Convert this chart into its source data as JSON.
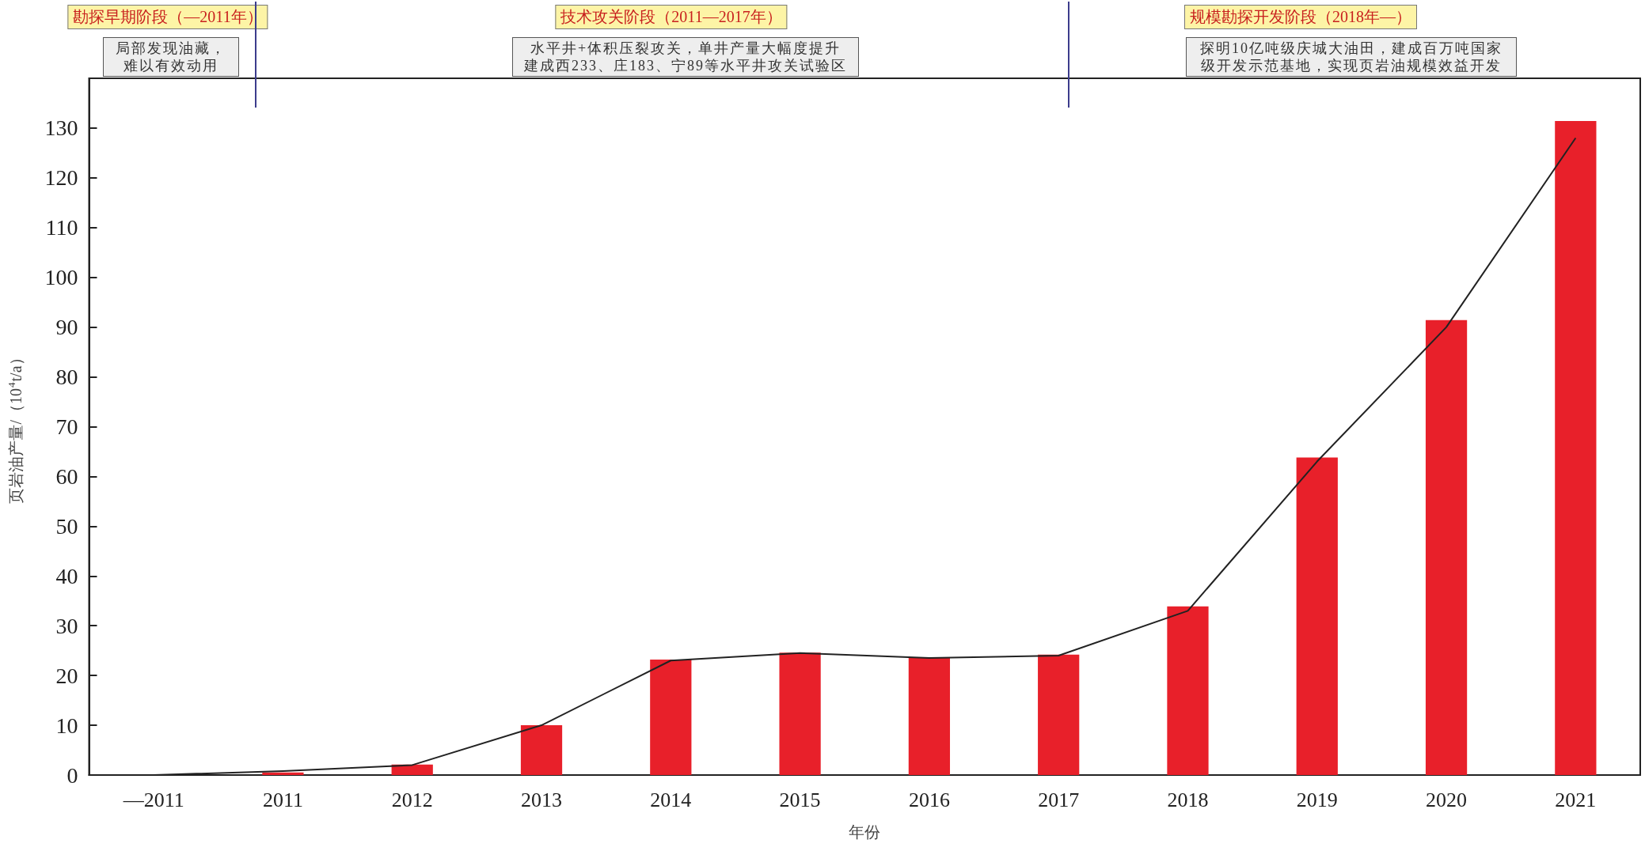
{
  "chart_data": {
    "type": "bar",
    "xlabel": "年份",
    "ylabel": "页岩油产量/（10$^{4}$t/a）",
    "categories": [
      "—2011",
      "2011",
      "2012",
      "2013",
      "2014",
      "2015",
      "2016",
      "2017",
      "2018",
      "2019",
      "2020",
      "2021"
    ],
    "series": [
      {
        "color": "#e8202a",
        "values": [
          0,
          0.5,
          2.1,
          10,
          23.2,
          24.6,
          23.6,
          24.2,
          33.9,
          63.8,
          91.4,
          131.4
        ]
      },
      {
        "type": "line",
        "color": "#222222",
        "marker": "none",
        "line_style": "solid",
        "values": [
          0,
          0.8,
          2,
          10,
          23,
          24.5,
          23.5,
          24,
          33,
          63,
          90,
          128
        ]
      }
    ],
    "ylim": [
      0,
      140
    ],
    "yticks": [
      0,
      10,
      20,
      30,
      40,
      50,
      60,
      70,
      80,
      90,
      100,
      110,
      120,
      130
    ],
    "grid": false,
    "annotations": [
      "勘探早期阶段（—2011年）",
      "技术攻关阶段（2011—2017年）",
      "规模勘探开发阶段（2018年—）",
      "局部发现油藏，难以有效动用",
      "水平井+体积压裂攻关，单井产量大幅度提升建成西233、庄183、宁89等水平井攻关试验区",
      "探明10亿吨级庆城大油田，建成百万吨国家级开发示范基地，实现页岩油规模效益开发"
    ]
  }
}
